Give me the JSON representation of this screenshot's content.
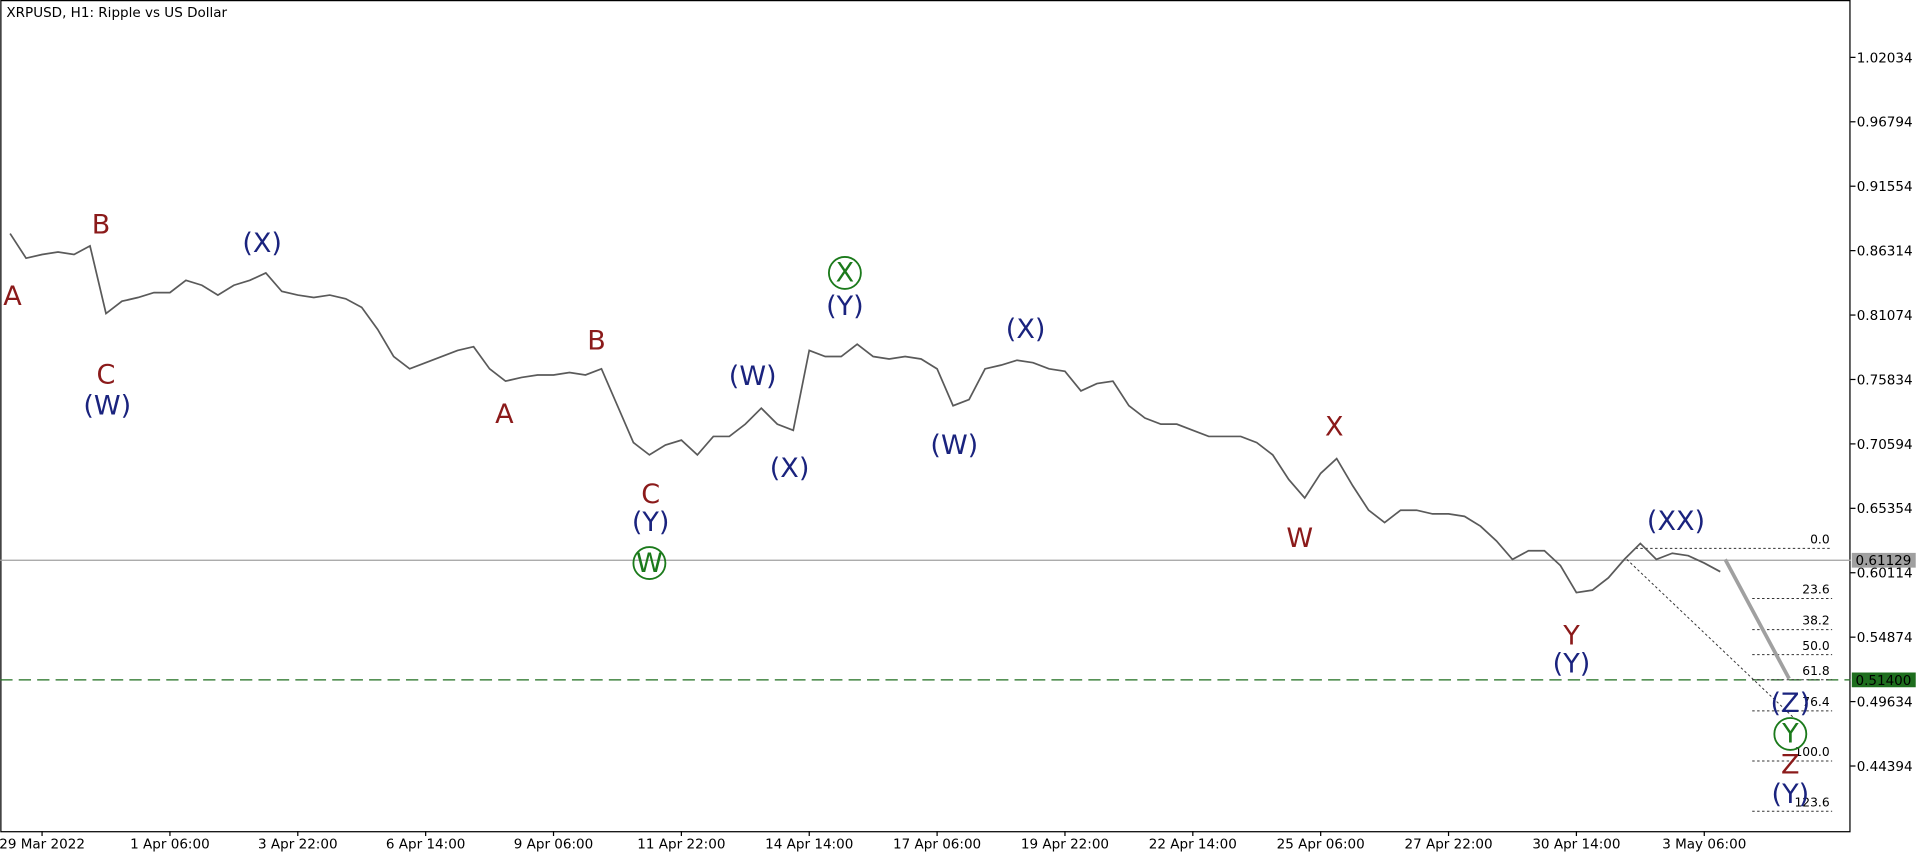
{
  "chart_data": {
    "type": "line",
    "title": "XRPUSD, H1:  Ripple vs US Dollar",
    "categories": [
      null,
      null,
      "29 Mar 2022",
      null,
      null,
      null,
      null,
      null,
      null,
      null,
      "1 Apr 06:00",
      null,
      null,
      null,
      null,
      null,
      null,
      null,
      "3 Apr 22:00",
      null,
      null,
      null,
      null,
      null,
      null,
      null,
      "6 Apr 14:00",
      null,
      null,
      null,
      null,
      null,
      null,
      null,
      "9 Apr 06:00",
      null,
      null,
      null,
      null,
      null,
      null,
      null,
      "11 Apr 22:00",
      null,
      null,
      null,
      null,
      null,
      null,
      null,
      "14 Apr 14:00",
      null,
      null,
      null,
      null,
      null,
      null,
      null,
      "17 Apr 06:00",
      null,
      null,
      null,
      null,
      null,
      null,
      null,
      "19 Apr 22:00",
      null,
      null,
      null,
      null,
      null,
      null,
      null,
      "22 Apr 14:00",
      null,
      null,
      null,
      null,
      null,
      null,
      null,
      "25 Apr 06:00",
      null,
      null,
      null,
      null,
      null,
      null,
      null,
      "27 Apr 22:00",
      null,
      null,
      null,
      null,
      null,
      null,
      null,
      "30 Apr 14:00",
      null,
      null,
      null,
      null,
      null,
      null,
      null,
      "3 May 06:00",
      null
    ],
    "values": [
      0.877,
      0.857,
      0.86,
      0.862,
      0.86,
      0.867,
      0.812,
      0.822,
      0.825,
      0.829,
      0.829,
      0.839,
      0.835,
      0.827,
      0.835,
      0.839,
      0.845,
      0.83,
      0.827,
      0.825,
      0.827,
      0.824,
      0.817,
      0.799,
      0.777,
      0.767,
      0.772,
      0.777,
      0.782,
      0.785,
      0.767,
      0.757,
      0.76,
      0.762,
      0.762,
      0.764,
      0.762,
      0.767,
      0.737,
      0.707,
      0.697,
      0.705,
      0.709,
      0.697,
      0.712,
      0.712,
      0.722,
      0.735,
      0.722,
      0.717,
      0.782,
      0.777,
      0.777,
      0.787,
      0.777,
      0.775,
      0.777,
      0.775,
      0.767,
      0.737,
      0.742,
      0.767,
      0.77,
      0.774,
      0.772,
      0.767,
      0.765,
      0.749,
      0.755,
      0.757,
      0.737,
      0.727,
      0.722,
      0.722,
      0.717,
      0.712,
      0.712,
      0.712,
      0.707,
      0.697,
      0.677,
      0.662,
      0.682,
      0.694,
      0.672,
      0.652,
      0.642,
      0.652,
      0.652,
      0.649,
      0.649,
      0.647,
      0.639,
      0.627,
      0.612,
      0.619,
      0.619,
      0.607,
      0.585,
      0.587,
      0.597,
      0.612,
      0.625,
      0.612,
      0.617,
      0.615,
      0.609,
      0.602
    ],
    "color": "#5a5a5a",
    "ylim": [
      0.391,
      1.067
    ],
    "yticks": [
      1.02034,
      0.96794,
      0.91554,
      0.86314,
      0.81074,
      0.75834,
      0.70594,
      0.65354,
      0.60114,
      0.54874,
      0.49634,
      0.44394
    ],
    "price_lines": [
      {
        "value": 0.61129,
        "label": "0.61129",
        "color": "#a0a0a0"
      },
      {
        "value": 0.514,
        "label": "0.51400",
        "color": "#1e6e1e"
      }
    ],
    "fibonacci": [
      {
        "value": 0,
        "label": "0.0"
      },
      23.6,
      38.2,
      {
        "value": 50,
        "label": "50.0"
      },
      61.8,
      76.4,
      {
        "value": 100,
        "label": "100.0"
      },
      123.6
    ],
    "annotations": [
      {
        "text": "A",
        "color": "#8b1a1a"
      },
      {
        "text": "B",
        "color": "#8b1a1a"
      },
      {
        "text": "C",
        "color": "#8b1a1a"
      },
      {
        "text": "(W)",
        "color": "#1a237e"
      },
      {
        "text": "(X)",
        "color": "#1a237e"
      },
      {
        "text": "A",
        "color": "#8b1a1a"
      },
      {
        "text": "B",
        "color": "#8b1a1a"
      },
      {
        "text": "C",
        "color": "#8b1a1a"
      },
      {
        "text": "(Y)",
        "color": "#1a237e"
      },
      {
        "text": "W",
        "color": "#1b7a1b",
        "circled": true
      },
      {
        "text": "(W)",
        "color": "#1a237e"
      },
      {
        "text": "(X)",
        "color": "#1a237e"
      },
      {
        "text": "X",
        "color": "#1b7a1b",
        "circled": true
      },
      {
        "text": "(Y)",
        "color": "#1a237e"
      },
      {
        "text": "(X)",
        "color": "#1a237e"
      },
      {
        "text": "(W)",
        "color": "#1a237e"
      },
      {
        "text": "X",
        "color": "#8b1a1a"
      },
      {
        "text": "W",
        "color": "#8b1a1a"
      },
      {
        "text": "Y",
        "color": "#8b1a1a"
      },
      {
        "text": "(Y)",
        "color": "#1a237e"
      },
      {
        "text": "(XX)",
        "color": "#1a237e"
      },
      {
        "text": "(Z)",
        "color": "#1a237e"
      },
      {
        "text": "Y",
        "color": "#1b7a1b",
        "circled": true
      },
      {
        "text": "Z",
        "color": "#8b1a1a"
      },
      {
        "text": "(Y)",
        "color": "#1a237e"
      }
    ]
  }
}
